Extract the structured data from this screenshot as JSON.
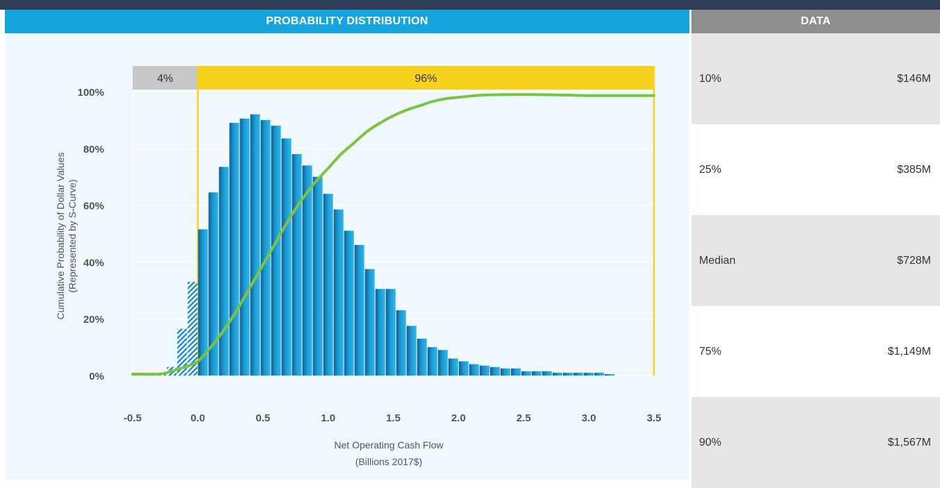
{
  "header": {
    "chart_title": "PROBABILITY DISTRIBUTION",
    "data_title": "DATA"
  },
  "bands": {
    "left_label": "4%",
    "right_label": "96%",
    "left_color": "#c8c8c8",
    "right_color": "#f7d21e"
  },
  "data_table": [
    {
      "label": "10%",
      "value": "$146M"
    },
    {
      "label": "25%",
      "value": "$385M"
    },
    {
      "label": "Median",
      "value": "$728M"
    },
    {
      "label": "75%",
      "value": "$1,149M"
    },
    {
      "label": "90%",
      "value": "$1,567M"
    }
  ],
  "chart_data": {
    "type": "bar",
    "ylabel_line1": "Cumulative Probability of Dollar Values",
    "ylabel_line2": "(Represented by S-Curve)",
    "xlabel_line1": "Net Operating Cash Flow",
    "xlabel_line2": "(Billions 2017$)",
    "xlim": [
      -0.5,
      3.5
    ],
    "ylim": [
      0,
      100
    ],
    "x_ticks": [
      "-0.5",
      "0.0",
      "0.5",
      "1.0",
      "1.5",
      "2.0",
      "2.5",
      "3.0",
      "3.5"
    ],
    "y_ticks": [
      "0%",
      "20%",
      "40%",
      "60%",
      "80%",
      "100%"
    ],
    "bin_width": 0.08,
    "histogram": {
      "bin_starts": [
        -0.48,
        -0.4,
        -0.32,
        -0.24,
        -0.16,
        -0.08,
        0.0,
        0.08,
        0.16,
        0.24,
        0.32,
        0.4,
        0.48,
        0.56,
        0.64,
        0.72,
        0.8,
        0.88,
        0.96,
        1.04,
        1.12,
        1.2,
        1.28,
        1.36,
        1.44,
        1.52,
        1.6,
        1.68,
        1.76,
        1.84,
        1.92,
        2.0,
        2.08,
        2.16,
        2.24,
        2.32,
        2.4,
        2.48,
        2.56,
        2.64,
        2.72,
        2.8,
        2.88,
        2.96,
        3.04,
        3.12
      ],
      "values": [
        1,
        1,
        1,
        3,
        16.5,
        33,
        51.5,
        64.5,
        73.5,
        89,
        90.5,
        92,
        90,
        88,
        83.5,
        78,
        74,
        70,
        64,
        58.5,
        51,
        46,
        37.5,
        30.5,
        30.5,
        23,
        17.5,
        13,
        10,
        9,
        6,
        5,
        4,
        3.5,
        3,
        2.5,
        2.5,
        1.5,
        1.5,
        1.5,
        1,
        1,
        1,
        1,
        1,
        0.5
      ],
      "negative_bar_color": "#1b8fc8",
      "positive_bar_color": "#1a9ad4"
    },
    "s_curve": {
      "color": "#7dc242",
      "x": [
        -0.5,
        -0.3,
        -0.2,
        -0.1,
        0.0,
        0.1,
        0.2,
        0.3,
        0.4,
        0.5,
        0.6,
        0.7,
        0.8,
        0.9,
        1.0,
        1.1,
        1.2,
        1.3,
        1.4,
        1.5,
        1.6,
        1.7,
        1.8,
        1.9,
        2.0,
        2.2,
        2.5,
        2.8,
        3.0,
        3.2,
        3.5
      ],
      "y": [
        0.5,
        0.5,
        1.5,
        3,
        5,
        10,
        16,
        23,
        31,
        39,
        47,
        55,
        62,
        68,
        73,
        78,
        82,
        86,
        89,
        91.5,
        93.5,
        95,
        96.5,
        97.5,
        98,
        98.8,
        99,
        98.8,
        98.6,
        98.6,
        98.6
      ]
    },
    "grid": true,
    "legend": "none"
  }
}
